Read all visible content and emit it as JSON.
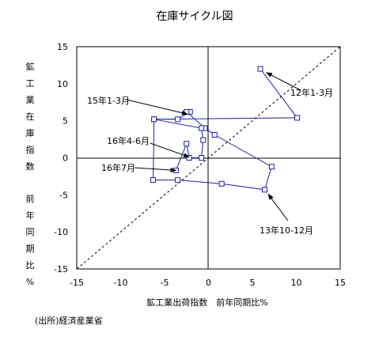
{
  "chart_data": {
    "type": "scatter",
    "title": "在庫サイクル図",
    "xlabel": "鉱工業出荷指数　前年同期比%",
    "ylabel": "鉱工業在庫指数　前年同期比%",
    "xlim": [
      -15,
      15
    ],
    "ylim": [
      -15,
      15
    ],
    "xticks": [
      "-15",
      "-10",
      "-5",
      "0",
      "5",
      "10",
      "15"
    ],
    "yticks": [
      "15",
      "10",
      "5",
      "0",
      "-5",
      "-10",
      "-15"
    ],
    "grid": false,
    "reference_line": "y = x (dashed)",
    "series": [
      {
        "color": "#1f1fa6",
        "marker": "open-square",
        "points": [
          {
            "x": 5.9,
            "y": 12.0
          },
          {
            "x": 10.1,
            "y": 5.4
          },
          {
            "x": -6.2,
            "y": 5.2
          },
          {
            "x": -3.5,
            "y": 5.2
          },
          {
            "x": -2.1,
            "y": 6.2
          },
          {
            "x": -2.5,
            "y": 6.2
          },
          {
            "x": -0.4,
            "y": 4.0
          },
          {
            "x": 0.7,
            "y": 3.1
          },
          {
            "x": 7.2,
            "y": -1.2
          },
          {
            "x": 6.4,
            "y": -4.3
          },
          {
            "x": 1.5,
            "y": -3.5
          },
          {
            "x": -3.5,
            "y": -3.0
          },
          {
            "x": -6.3,
            "y": -3.0
          },
          {
            "x": -6.2,
            "y": 5.2
          },
          {
            "x": -0.8,
            "y": 4.0
          },
          {
            "x": -0.6,
            "y": 2.4
          },
          {
            "x": -0.8,
            "y": 0.0
          },
          {
            "x": -2.2,
            "y": 0.0
          },
          {
            "x": -2.5,
            "y": 1.9
          },
          {
            "x": -3.7,
            "y": -1.7
          }
        ]
      }
    ],
    "annotations": [
      {
        "text": "12年1-3月",
        "target": {
          "x": 6.6,
          "y": 11.5
        }
      },
      {
        "text": "15年1-3月",
        "target": {
          "x": -2.4,
          "y": 5.9
        }
      },
      {
        "text": "16年4-6月",
        "target": {
          "x": -2.2,
          "y": 0.1
        }
      },
      {
        "text": "16年7月",
        "target": {
          "x": -3.7,
          "y": -1.7
        }
      },
      {
        "text": "13年10-12月",
        "target": {
          "x": 6.8,
          "y": -4.9
        }
      }
    ]
  },
  "source_note": "(出所)経済産業省"
}
